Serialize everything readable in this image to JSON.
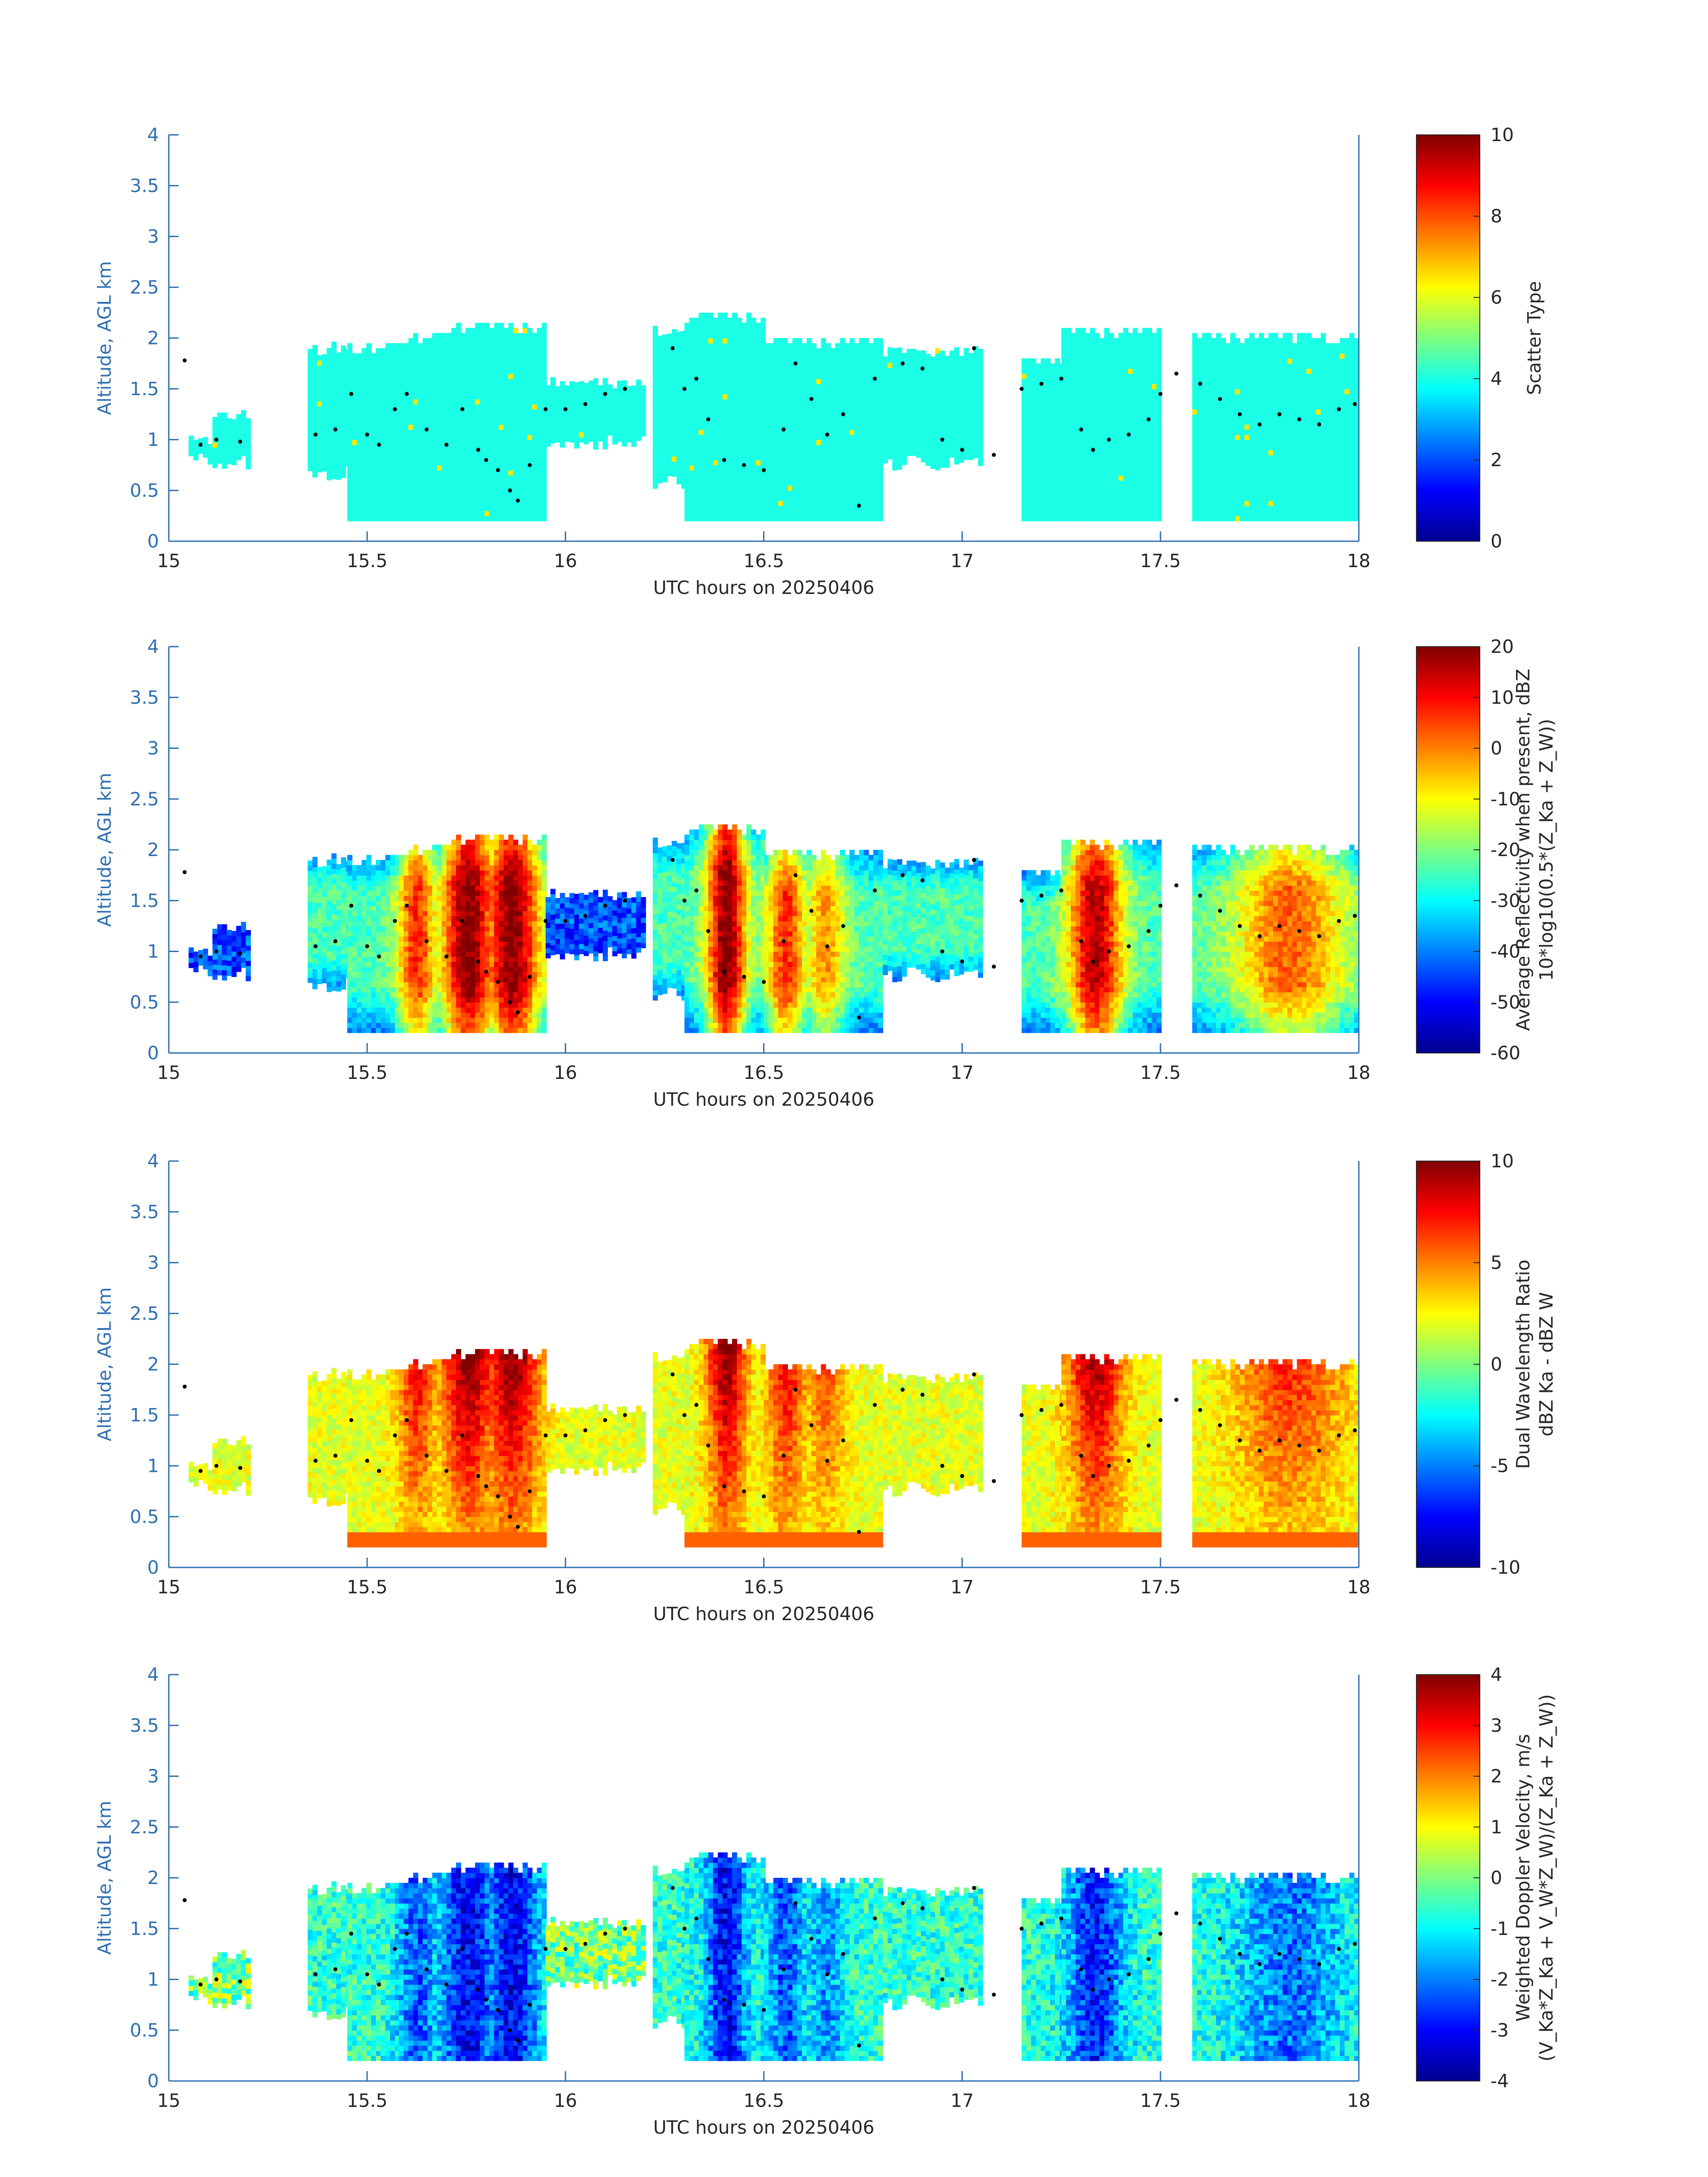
{
  "chart_data": [
    {
      "type": "heatmap",
      "title": "",
      "xlabel": "UTC hours on 20250406",
      "ylabel": "Altitude, AGL km",
      "xlim": [
        15,
        18
      ],
      "ylim": [
        0,
        4
      ],
      "xticks": [
        "15",
        "15.5",
        "16",
        "16.5",
        "17",
        "17.5",
        "18"
      ],
      "yticks": [
        "0",
        "0.5",
        "1",
        "1.5",
        "2",
        "2.5",
        "3",
        "3.5",
        "4"
      ],
      "colorbar": {
        "label_lines": [
          "Scatter Type"
        ],
        "range": [
          0,
          10
        ],
        "ticks": [
          "0",
          "2",
          "4",
          "6",
          "8",
          "10"
        ]
      },
      "field": "scatter_type"
    },
    {
      "type": "heatmap",
      "title": "",
      "xlabel": "UTC hours on 20250406",
      "ylabel": "Altitude, AGL km",
      "xlim": [
        15,
        18
      ],
      "ylim": [
        0,
        4
      ],
      "xticks": [
        "15",
        "15.5",
        "16",
        "16.5",
        "17",
        "17.5",
        "18"
      ],
      "yticks": [
        "0",
        "0.5",
        "1",
        "1.5",
        "2",
        "2.5",
        "3",
        "3.5",
        "4"
      ],
      "colorbar": {
        "label_lines": [
          "Average Reflectivity when present, dBZ",
          "10*log10(0.5*(Z_Ka + Z_W))"
        ],
        "range": [
          -60,
          20
        ],
        "ticks": [
          "-60",
          "-50",
          "-40",
          "-30",
          "-20",
          "-10",
          "0",
          "10",
          "20"
        ]
      },
      "field": "reflectivity"
    },
    {
      "type": "heatmap",
      "title": "",
      "xlabel": "UTC hours on 20250406",
      "ylabel": "Altitude, AGL km",
      "xlim": [
        15,
        18
      ],
      "ylim": [
        0,
        4
      ],
      "xticks": [
        "15",
        "15.5",
        "16",
        "16.5",
        "17",
        "17.5",
        "18"
      ],
      "yticks": [
        "0",
        "0.5",
        "1",
        "1.5",
        "2",
        "2.5",
        "3",
        "3.5",
        "4"
      ],
      "colorbar": {
        "label_lines": [
          "Dual Wavelength Ratio",
          "dBZ Ka - dBZ W"
        ],
        "range": [
          -10,
          10
        ],
        "ticks": [
          "-10",
          "-5",
          "0",
          "5",
          "10"
        ]
      },
      "field": "dwr"
    },
    {
      "type": "heatmap",
      "title": "",
      "xlabel": "UTC hours on 20250406",
      "ylabel": "Altitude, AGL km",
      "xlim": [
        15,
        18
      ],
      "ylim": [
        0,
        4
      ],
      "xticks": [
        "15",
        "15.5",
        "16",
        "16.5",
        "17",
        "17.5",
        "18"
      ],
      "yticks": [
        "0",
        "0.5",
        "1",
        "1.5",
        "2",
        "2.5",
        "3",
        "3.5",
        "4"
      ],
      "colorbar": {
        "label_lines": [
          "Weighted Doppler Velocity, m/s",
          "(V_Ka*Z_Ka + V_W*Z_W)/(Z_Ka + Z_W))"
        ],
        "range": [
          -4,
          4
        ],
        "ticks": [
          "-4",
          "-3",
          "-2",
          "-1",
          "0",
          "1",
          "2",
          "3",
          "4"
        ]
      },
      "field": "velocity"
    }
  ],
  "cloud_segments": [
    {
      "t0": 15.05,
      "t1": 15.11,
      "bottom": 0.75,
      "top": 1.05
    },
    {
      "t0": 15.11,
      "t1": 15.2,
      "bottom": 0.7,
      "top": 1.3
    },
    {
      "t0": 15.35,
      "t1": 15.45,
      "bottom": 0.6,
      "top": 1.95
    },
    {
      "t0": 15.45,
      "t1": 15.58,
      "bottom": 0.2,
      "top": 1.95
    },
    {
      "t0": 15.58,
      "t1": 15.7,
      "bottom": 0.2,
      "top": 2.05
    },
    {
      "t0": 15.7,
      "t1": 15.95,
      "bottom": 0.2,
      "top": 2.15
    },
    {
      "t0": 15.95,
      "t1": 16.2,
      "bottom": 0.9,
      "top": 1.6
    },
    {
      "t0": 16.22,
      "t1": 16.3,
      "bottom": 0.5,
      "top": 2.1
    },
    {
      "t0": 16.3,
      "t1": 16.5,
      "bottom": 0.2,
      "top": 2.25
    },
    {
      "t0": 16.5,
      "t1": 16.8,
      "bottom": 0.2,
      "top": 2.0
    },
    {
      "t0": 16.8,
      "t1": 17.05,
      "bottom": 0.7,
      "top": 1.9
    },
    {
      "t0": 17.15,
      "t1": 17.25,
      "bottom": 0.2,
      "top": 1.8
    },
    {
      "t0": 17.25,
      "t1": 17.5,
      "bottom": 0.2,
      "top": 2.1
    },
    {
      "t0": 17.58,
      "t1": 18.0,
      "bottom": 0.2,
      "top": 2.05
    }
  ],
  "cloud_base_dots": [
    [
      15.04,
      1.78
    ],
    [
      15.08,
      0.95
    ],
    [
      15.12,
      1.0
    ],
    [
      15.18,
      0.98
    ],
    [
      15.37,
      1.05
    ],
    [
      15.42,
      1.1
    ],
    [
      15.46,
      1.45
    ],
    [
      15.5,
      1.05
    ],
    [
      15.53,
      0.95
    ],
    [
      15.57,
      1.3
    ],
    [
      15.6,
      1.45
    ],
    [
      15.65,
      1.1
    ],
    [
      15.7,
      0.95
    ],
    [
      15.74,
      1.3
    ],
    [
      15.78,
      0.9
    ],
    [
      15.8,
      0.8
    ],
    [
      15.83,
      0.7
    ],
    [
      15.86,
      0.5
    ],
    [
      15.88,
      0.4
    ],
    [
      15.91,
      0.75
    ],
    [
      15.95,
      1.3
    ],
    [
      16.0,
      1.3
    ],
    [
      16.05,
      1.35
    ],
    [
      16.1,
      1.45
    ],
    [
      16.15,
      1.5
    ],
    [
      16.27,
      1.9
    ],
    [
      16.3,
      1.5
    ],
    [
      16.33,
      1.6
    ],
    [
      16.36,
      1.2
    ],
    [
      16.4,
      0.8
    ],
    [
      16.45,
      0.75
    ],
    [
      16.5,
      0.7
    ],
    [
      16.55,
      1.1
    ],
    [
      16.58,
      1.75
    ],
    [
      16.62,
      1.4
    ],
    [
      16.66,
      1.05
    ],
    [
      16.7,
      1.25
    ],
    [
      16.74,
      0.35
    ],
    [
      16.78,
      1.6
    ],
    [
      16.85,
      1.75
    ],
    [
      16.9,
      1.7
    ],
    [
      16.95,
      1.0
    ],
    [
      17.0,
      0.9
    ],
    [
      17.03,
      1.9
    ],
    [
      17.08,
      0.85
    ],
    [
      17.15,
      1.5
    ],
    [
      17.2,
      1.55
    ],
    [
      17.25,
      1.6
    ],
    [
      17.3,
      1.1
    ],
    [
      17.33,
      0.9
    ],
    [
      17.37,
      1.0
    ],
    [
      17.42,
      1.05
    ],
    [
      17.47,
      1.2
    ],
    [
      17.5,
      1.45
    ],
    [
      17.54,
      1.65
    ],
    [
      17.6,
      1.55
    ],
    [
      17.65,
      1.4
    ],
    [
      17.7,
      1.25
    ],
    [
      17.75,
      1.15
    ],
    [
      17.8,
      1.25
    ],
    [
      17.85,
      1.2
    ],
    [
      17.9,
      1.15
    ],
    [
      17.95,
      1.3
    ],
    [
      17.99,
      1.35
    ]
  ]
}
